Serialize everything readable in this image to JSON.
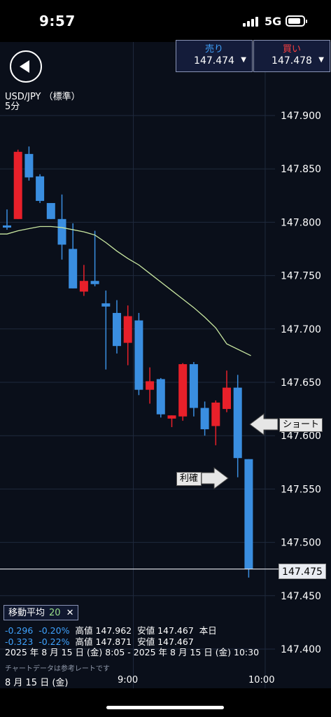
{
  "status_bar": {
    "time": "9:57",
    "network": "5G"
  },
  "quotes": {
    "sell": {
      "label": "売り",
      "value": "147.474"
    },
    "buy": {
      "label": "買い",
      "value": "147.478"
    }
  },
  "symbol": {
    "pair": "USD/JPY （標準）",
    "interval": "5分"
  },
  "current_price_flag": "147.475",
  "annotations": {
    "short": "ショート",
    "take_profit": "利確"
  },
  "indicator": {
    "label": "移動平均",
    "period": "20",
    "close_symbol": "✕"
  },
  "stats": {
    "row1": {
      "change": "-0.296",
      "percent": "-0.20%",
      "high_label": "高値",
      "high": "147.962",
      "low_label": "安値",
      "low": "147.467",
      "period": "本日"
    },
    "row2": {
      "change": "-0.323",
      "percent": "-0.22%",
      "high_label": "高値",
      "high": "147.871",
      "low_label": "安値",
      "low": "147.467"
    },
    "range": "2025 年 8 月 15 日 (金) 8:05 - 2025 年 8 月 15 日 (金) 10:30"
  },
  "note": "チャートデータは参考レートです",
  "colors": {
    "up": "#e8202a",
    "down": "#3a8ee0",
    "ma": "#c8e6a0",
    "background": "#0a0f1a"
  },
  "chart_data": {
    "type": "candlestick",
    "interval": "5分",
    "ylim": [
      147.4,
      147.92
    ],
    "y_ticks": [
      "147.900",
      "147.850",
      "147.800",
      "147.750",
      "147.700",
      "147.650",
      "147.600",
      "147.550",
      "147.500",
      "147.450",
      "147.400"
    ],
    "x_ticks": [
      {
        "label": "8 月 15 日 (金)",
        "x": 0
      },
      {
        "label": "9:00",
        "x": 11.5
      },
      {
        "label": "10:00",
        "x": 23.5
      }
    ],
    "candles": [
      {
        "o": 147.797,
        "h": 147.812,
        "l": 147.793,
        "c": 147.795
      },
      {
        "o": 147.803,
        "h": 147.868,
        "l": 147.803,
        "c": 147.866
      },
      {
        "o": 147.864,
        "h": 147.871,
        "l": 147.839,
        "c": 147.842
      },
      {
        "o": 147.843,
        "h": 147.845,
        "l": 147.818,
        "c": 147.82
      },
      {
        "o": 147.818,
        "h": 147.818,
        "l": 147.803,
        "c": 147.803
      },
      {
        "o": 147.803,
        "h": 147.826,
        "l": 147.765,
        "c": 147.779
      },
      {
        "o": 147.775,
        "h": 147.799,
        "l": 147.738,
        "c": 147.738
      },
      {
        "o": 147.735,
        "h": 147.76,
        "l": 147.731,
        "c": 147.745
      },
      {
        "o": 147.745,
        "h": 147.792,
        "l": 147.74,
        "c": 147.742
      },
      {
        "o": 147.724,
        "h": 147.736,
        "l": 147.662,
        "c": 147.721
      },
      {
        "o": 147.715,
        "h": 147.727,
        "l": 147.677,
        "c": 147.684
      },
      {
        "o": 147.687,
        "h": 147.722,
        "l": 147.666,
        "c": 147.712
      },
      {
        "o": 147.708,
        "h": 147.715,
        "l": 147.638,
        "c": 147.643
      },
      {
        "o": 147.643,
        "h": 147.664,
        "l": 147.63,
        "c": 147.651
      },
      {
        "o": 147.653,
        "h": 147.654,
        "l": 147.617,
        "c": 147.62
      },
      {
        "o": 147.616,
        "h": 147.619,
        "l": 147.608,
        "c": 147.619
      },
      {
        "o": 147.618,
        "h": 147.668,
        "l": 147.614,
        "c": 147.667
      },
      {
        "o": 147.667,
        "h": 147.669,
        "l": 147.618,
        "c": 147.626
      },
      {
        "o": 147.626,
        "h": 147.632,
        "l": 147.6,
        "c": 147.606
      },
      {
        "o": 147.609,
        "h": 147.633,
        "l": 147.591,
        "c": 147.631
      },
      {
        "o": 147.625,
        "h": 147.661,
        "l": 147.622,
        "c": 147.645
      },
      {
        "o": 147.645,
        "h": 147.657,
        "l": 147.561,
        "c": 147.579
      },
      {
        "o": 147.578,
        "h": 147.578,
        "l": 147.467,
        "c": 147.475
      }
    ],
    "moving_average": {
      "name": "移動平均 20",
      "period": 20,
      "values": [
        147.789,
        147.792,
        147.794,
        147.796,
        147.796,
        147.795,
        147.793,
        147.791,
        147.788,
        147.781,
        147.773,
        147.766,
        147.76,
        147.752,
        147.744,
        147.736,
        147.728,
        147.72,
        147.711,
        147.701,
        147.686,
        null,
        null
      ],
      "x_end": 22.2,
      "y_end": 147.675
    },
    "last_price": 147.475
  }
}
